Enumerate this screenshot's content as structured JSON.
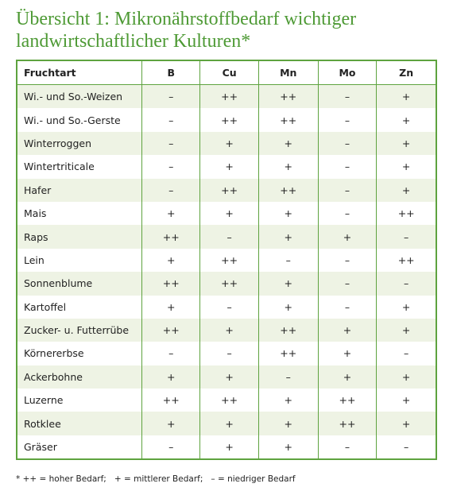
{
  "title": "Übersicht 1: Mikronährstoffbedarf wichtiger landwirtschaftlicher Kulturen*",
  "table": {
    "header": [
      "Fruchtart",
      "B",
      "Cu",
      "Mn",
      "Mo",
      "Zn"
    ],
    "rows": [
      [
        "Wi.- und So.-Weizen",
        "–",
        "++",
        "++",
        "–",
        "+"
      ],
      [
        "Wi.- und So.-Gerste",
        "–",
        "++",
        "++",
        "–",
        "+"
      ],
      [
        "Winterroggen",
        "–",
        "+",
        "+",
        "–",
        "+"
      ],
      [
        "Wintertriticale",
        "–",
        "+",
        "+",
        "–",
        "+"
      ],
      [
        "Hafer",
        "–",
        "++",
        "++",
        "–",
        "+"
      ],
      [
        "Mais",
        "+",
        "+",
        "+",
        "–",
        "++"
      ],
      [
        "Raps",
        "++",
        "–",
        "+",
        "+",
        "–"
      ],
      [
        "Lein",
        "+",
        "++",
        "–",
        "–",
        "++"
      ],
      [
        "Sonnenblume",
        "++",
        "++",
        "+",
        "–",
        "–"
      ],
      [
        "Kartoffel",
        "+",
        "–",
        "+",
        "–",
        "+"
      ],
      [
        "Zucker- u. Futterrübe",
        "++",
        "+",
        "++",
        "+",
        "+"
      ],
      [
        "Körnererbse",
        "–",
        "–",
        "++",
        "+",
        "–"
      ],
      [
        "Ackerbohne",
        "+",
        "+",
        "–",
        "+",
        "+"
      ],
      [
        "Luzerne",
        "++",
        "++",
        "+",
        "++",
        "+"
      ],
      [
        "Rotklee",
        "+",
        "+",
        "+",
        "++",
        "+"
      ],
      [
        "Gräser",
        "–",
        "+",
        "+",
        "–",
        "–"
      ]
    ]
  },
  "footnote": "* ++ = hoher Bedarf;   + = mittlerer Bedarf;   – = niedriger Bedarf"
}
